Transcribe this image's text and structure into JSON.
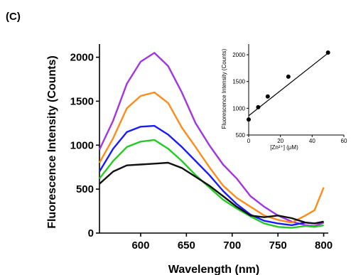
{
  "panel_label": "(C)",
  "chart_data": [
    {
      "type": "line",
      "xlabel": "Wavelength (nm)",
      "ylabel": "Fluorescence Intensity (Counts)",
      "xlim": [
        555,
        805
      ],
      "ylim": [
        0,
        2150
      ],
      "xticks": [
        600,
        650,
        700,
        750,
        800
      ],
      "yticks": [
        0,
        500,
        1000,
        1500,
        2000
      ],
      "grid": false,
      "legend": "none",
      "series": [
        {
          "color": "#a335e0",
          "x": [
            555,
            570,
            585,
            600,
            615,
            630,
            645,
            660,
            675,
            690,
            705,
            720,
            735,
            750,
            765,
            780,
            790,
            800
          ],
          "y": [
            950,
            1280,
            1700,
            1950,
            2050,
            1900,
            1600,
            1250,
            1000,
            780,
            620,
            420,
            300,
            200,
            130,
            90,
            80,
            120
          ]
        },
        {
          "color": "#ff8c1a",
          "x": [
            555,
            570,
            585,
            600,
            615,
            630,
            645,
            660,
            675,
            690,
            705,
            720,
            735,
            750,
            765,
            780,
            790,
            800
          ],
          "y": [
            800,
            1080,
            1420,
            1560,
            1600,
            1480,
            1200,
            980,
            750,
            540,
            400,
            300,
            200,
            150,
            120,
            200,
            260,
            520
          ]
        },
        {
          "color": "#1a1aff",
          "x": [
            555,
            570,
            585,
            600,
            615,
            630,
            645,
            660,
            675,
            690,
            705,
            720,
            735,
            750,
            765,
            780,
            790,
            800
          ],
          "y": [
            700,
            960,
            1150,
            1210,
            1220,
            1120,
            980,
            820,
            660,
            480,
            330,
            210,
            140,
            110,
            90,
            120,
            110,
            130
          ]
        },
        {
          "color": "#22cc22",
          "x": [
            555,
            570,
            585,
            600,
            615,
            630,
            645,
            660,
            675,
            690,
            705,
            720,
            735,
            750,
            765,
            780,
            790,
            800
          ],
          "y": [
            620,
            820,
            980,
            1040,
            1060,
            960,
            820,
            660,
            520,
            380,
            280,
            190,
            110,
            70,
            60,
            80,
            70,
            90
          ]
        },
        {
          "color": "#111111",
          "x": [
            555,
            570,
            585,
            600,
            615,
            630,
            645,
            660,
            675,
            690,
            705,
            720,
            735,
            750,
            765,
            780,
            790,
            800
          ],
          "y": [
            560,
            700,
            770,
            780,
            790,
            800,
            740,
            640,
            540,
            420,
            300,
            200,
            180,
            200,
            170,
            120,
            110,
            130
          ]
        }
      ]
    },
    {
      "type": "scatter",
      "xlabel": "[Zn²⁺] (μM)",
      "ylabel": "Fluorescence Intensity (Counts)",
      "xlim": [
        0,
        60
      ],
      "ylim": [
        500,
        2200
      ],
      "xticks": [
        0,
        20,
        40,
        60
      ],
      "yticks": [
        500,
        1000,
        1500,
        2000
      ],
      "grid": false,
      "points": {
        "x": [
          0,
          6,
          12,
          25,
          50
        ],
        "y": [
          790,
          1020,
          1220,
          1590,
          2040
        ]
      },
      "fit_line": {
        "x": [
          0,
          50
        ],
        "y": [
          860,
          2030
        ]
      }
    }
  ]
}
